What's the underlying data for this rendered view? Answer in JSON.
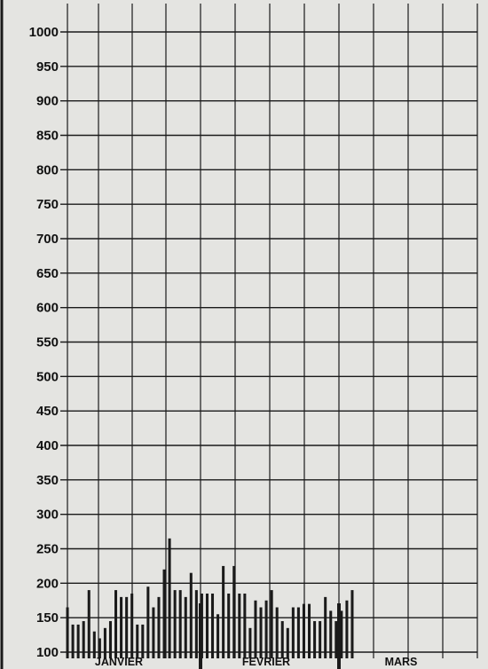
{
  "chart_data": {
    "type": "bar",
    "title": "",
    "xlabel": "",
    "ylabel": "",
    "ylim": [
      100,
      1000
    ],
    "yticks": [
      100,
      150,
      200,
      250,
      300,
      350,
      400,
      450,
      500,
      550,
      600,
      650,
      700,
      750,
      800,
      850,
      900,
      950,
      1000
    ],
    "grid": true,
    "months": [
      "JANVIER",
      "FEVRIER",
      "MARS"
    ],
    "days_per_month": [
      31,
      28,
      31
    ],
    "series": [
      {
        "values": [
          165,
          140,
          140,
          145,
          190,
          130,
          120,
          135,
          145,
          190,
          180,
          180,
          185,
          140,
          140,
          195,
          165,
          180,
          220,
          265,
          190,
          190,
          180,
          215,
          190,
          185,
          185,
          185,
          155,
          225,
          185,
          225,
          185,
          185,
          135,
          175,
          165,
          175,
          190,
          165,
          145,
          135,
          165,
          165,
          170,
          170,
          145,
          145,
          180,
          160,
          145,
          160,
          175,
          190
        ]
      }
    ]
  },
  "colors": {
    "background": "#e4e4e1",
    "grid": "#1a1a1a",
    "bar": "#1a1a1a"
  }
}
